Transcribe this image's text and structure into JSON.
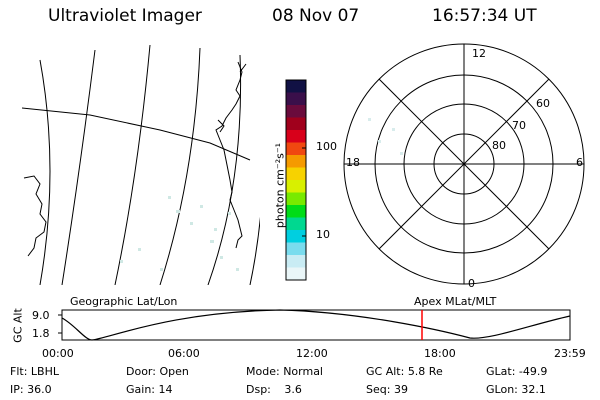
{
  "header": {
    "title": "Ultraviolet Imager",
    "date": "08 Nov 07",
    "time": "16:57:34 UT"
  },
  "colorbar": {
    "unit": "photon cm⁻²s⁻¹",
    "ticks": [
      "100",
      "10"
    ],
    "colors": [
      "#111144",
      "#3a0f4a",
      "#6a0b3c",
      "#a0001c",
      "#d8001a",
      "#f04810",
      "#f59a00",
      "#f7d200",
      "#d8f000",
      "#78ea00",
      "#00dc18",
      "#00d890",
      "#00cfe0",
      "#7adcee",
      "#c9ecf4",
      "#eaf6f8"
    ]
  },
  "left_map": {
    "label": "Geographic Lat/Lon"
  },
  "polar": {
    "label": "Apex MLat/MLT",
    "mlt_labels": {
      "top": "12",
      "left": "18",
      "right": "6",
      "bottom": "0"
    },
    "lat_labels": [
      "60",
      "70",
      "80"
    ]
  },
  "altitude_plot": {
    "ylabel": "GC Alt",
    "yticks": [
      "9.0",
      "1.8"
    ],
    "xticks": [
      "00:00",
      "06:00",
      "12:00",
      "18:00",
      "23:59"
    ],
    "marker_color": "#ff0000"
  },
  "info": {
    "row1": [
      {
        "label": "Flt:",
        "value": "LBHL"
      },
      {
        "label": "Door:",
        "value": "Open"
      },
      {
        "label": "Mode:",
        "value": "Normal"
      },
      {
        "label": "GC Alt:",
        "value": "5.8 Re"
      },
      {
        "label": "GLat:",
        "value": "-49.9"
      }
    ],
    "row2": [
      {
        "label": "IP:",
        "value": "36.0"
      },
      {
        "label": "Gain:",
        "value": "14"
      },
      {
        "label": "Dsp:",
        "value": "3.6"
      },
      {
        "label": "Seq:",
        "value": "39"
      },
      {
        "label": "GLon:",
        "value": "32.1"
      }
    ]
  }
}
